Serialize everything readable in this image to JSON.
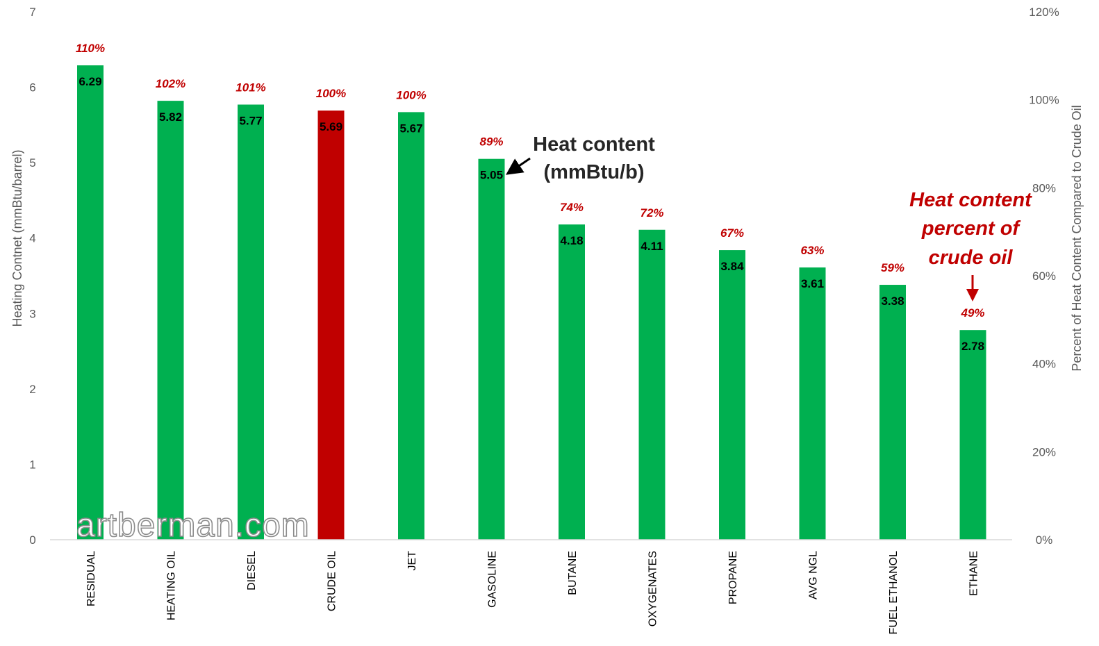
{
  "chart_data": {
    "type": "bar",
    "categories": [
      "RESIDUAL",
      "HEATING OIL",
      "DIESEL",
      "CRUDE OIL",
      "JET",
      "GASOLINE",
      "BUTANE",
      "OXYGENATES",
      "PROPANE",
      "AVG NGL",
      "FUEL ETHANOL",
      "ETHANE"
    ],
    "values": [
      6.29,
      5.82,
      5.77,
      5.69,
      5.67,
      5.05,
      4.18,
      4.11,
      3.84,
      3.61,
      3.38,
      2.78
    ],
    "value_labels": [
      "6.29",
      "5.82",
      "5.77",
      "5.69",
      "5.67",
      "5.05",
      "4.18",
      "4.11",
      "3.84",
      "3.61",
      "3.38",
      "2.78"
    ],
    "percent_of_crude": [
      110,
      102,
      101,
      100,
      100,
      89,
      74,
      72,
      67,
      63,
      59,
      49
    ],
    "percent_labels": [
      "110%",
      "102%",
      "101%",
      "100%",
      "100%",
      "89%",
      "74%",
      "72%",
      "67%",
      "63%",
      "59%",
      "49%"
    ],
    "highlight_category": "CRUDE OIL",
    "ylabel": "Heating Contnet (mmBtu/barrel)",
    "y2label": "Percent of Heat Content Compared to Crude Oil",
    "ylim": [
      0,
      7
    ],
    "yticks": [
      "0",
      "1",
      "2",
      "3",
      "4",
      "5",
      "6",
      "7"
    ],
    "y2lim": [
      0,
      120
    ],
    "y2ticks": [
      "0%",
      "20%",
      "40%",
      "60%",
      "80%",
      "100%",
      "120%"
    ],
    "annotations": {
      "heat_content": [
        "Heat content",
        "(mmBtu/b)"
      ],
      "percent_of_crude": [
        "Heat content",
        "percent of",
        "crude oil"
      ]
    },
    "watermark": "artberman.com",
    "grid": false,
    "legend": "none",
    "colors": {
      "bar": "#00b050",
      "highlight": "#c00000",
      "percent_label": "#c00000",
      "axis": "#d9d9d9"
    }
  }
}
